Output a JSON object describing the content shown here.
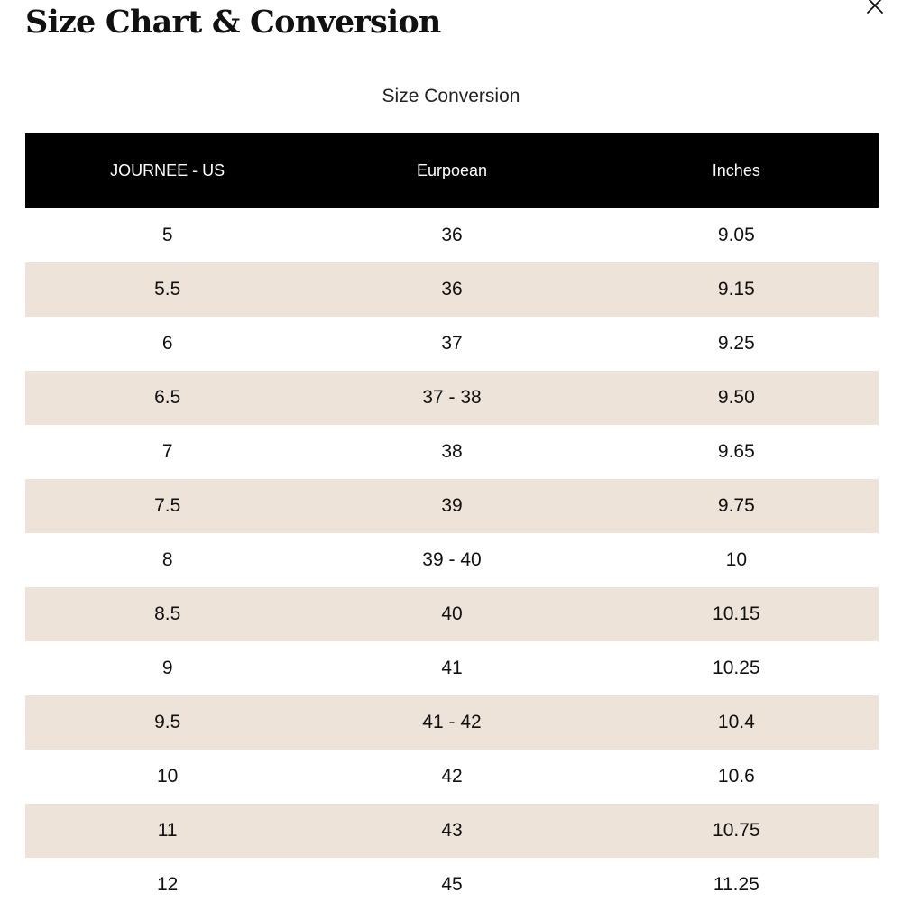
{
  "modal": {
    "title": "Size Chart & Conversion",
    "close_icon": "close-icon"
  },
  "section": {
    "heading": "Size Conversion"
  },
  "colors": {
    "header_background": "#000000",
    "header_text": "#ffffff",
    "stripe": "#ede3d9"
  },
  "table": {
    "headers": [
      "JOURNEE - US",
      "Eurpoean",
      "Inches"
    ],
    "rows": [
      [
        "5",
        "36",
        "9.05"
      ],
      [
        "5.5",
        "36",
        "9.15"
      ],
      [
        "6",
        "37",
        "9.25"
      ],
      [
        "6.5",
        "37 - 38",
        "9.50"
      ],
      [
        "7",
        "38",
        "9.65"
      ],
      [
        "7.5",
        "39",
        "9.75"
      ],
      [
        "8",
        "39 - 40",
        "10"
      ],
      [
        "8.5",
        "40",
        "10.15"
      ],
      [
        "9",
        "41",
        "10.25"
      ],
      [
        "9.5",
        "41 - 42",
        "10.4"
      ],
      [
        "10",
        "42",
        "10.6"
      ],
      [
        "11",
        "43",
        "10.75"
      ],
      [
        "12",
        "45",
        "11.25"
      ]
    ]
  }
}
